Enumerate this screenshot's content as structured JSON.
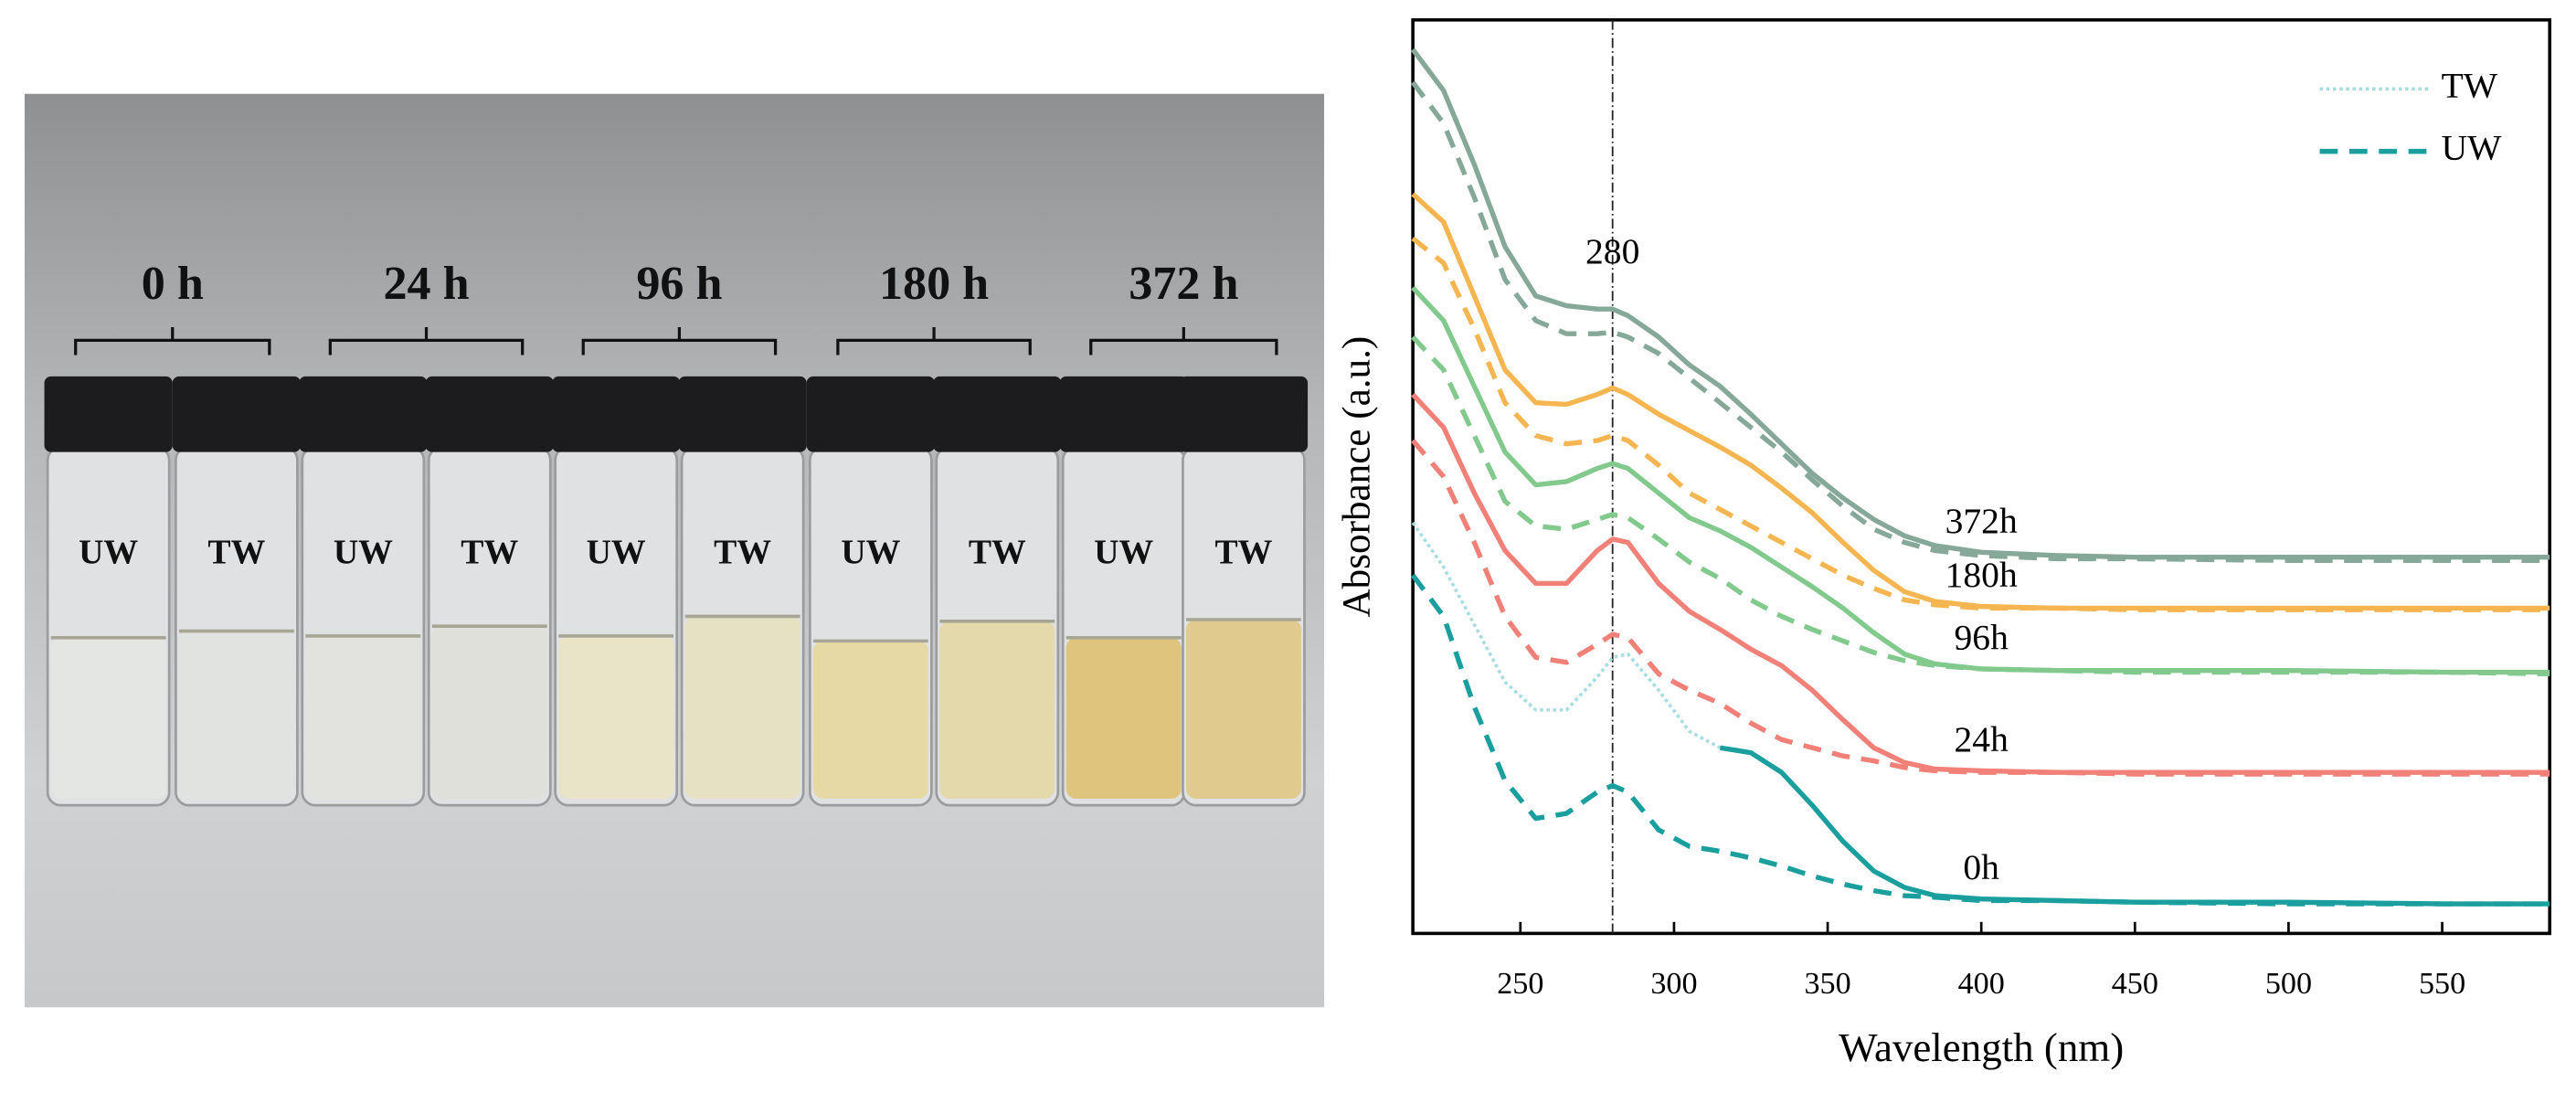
{
  "photo": {
    "groups": [
      "0 h",
      "24 h",
      "96 h",
      "180 h",
      "372 h"
    ],
    "vials": [
      "UW",
      "TW",
      "UW",
      "TW",
      "UW",
      "TW",
      "UW",
      "TW",
      "UW",
      "TW"
    ]
  },
  "chart_data": {
    "type": "line",
    "xlabel": "Wavelength (nm)",
    "ylabel": "Absorbance (a.u.)",
    "x": [
      215,
      225,
      235,
      245,
      255,
      265,
      275,
      280,
      285,
      295,
      305,
      315,
      325,
      335,
      345,
      355,
      365,
      375,
      385,
      400,
      425,
      450,
      500,
      550,
      585
    ],
    "xlim": [
      215,
      585
    ],
    "xticks": [
      250,
      300,
      350,
      400,
      450,
      500,
      550
    ],
    "ylim": [
      0,
      556
    ],
    "vline": 280,
    "legend_loc": "upper right",
    "legend": [
      {
        "name": "TW",
        "color": "#a8dde0",
        "style": "dotted"
      },
      {
        "name": "UW",
        "color": "#1a9e9e",
        "style": "dashed"
      }
    ],
    "series": [
      {
        "color": "#1a9e9e",
        "style": "dashed",
        "values": [
          218,
          193,
          138,
          93,
          70,
          73,
          86,
          90,
          86,
          63,
          53,
          50,
          46,
          41,
          35,
          30,
          26,
          23,
          22,
          20,
          20,
          19,
          18,
          18,
          18
        ]
      },
      {
        "color": "#a8dde0",
        "style": "dotted",
        "values": [
          250,
          223,
          188,
          153,
          136,
          136,
          156,
          168,
          170,
          148,
          123,
          113,
          null,
          null,
          null,
          null,
          null,
          null,
          null,
          null,
          null,
          null,
          null,
          null,
          null
        ]
      },
      {
        "name": "0h",
        "color": "#1a9e9e",
        "style": "solid",
        "values": [
          null,
          null,
          null,
          null,
          null,
          null,
          null,
          null,
          null,
          null,
          null,
          113,
          110,
          98,
          78,
          56,
          38,
          28,
          23,
          21,
          20,
          19,
          19,
          18,
          18
        ]
      },
      {
        "color": "#f08078",
        "style": "dashed",
        "values": [
          300,
          278,
          238,
          193,
          168,
          165,
          176,
          182,
          180,
          158,
          148,
          140,
          128,
          118,
          113,
          108,
          105,
          101,
          99,
          98,
          98,
          97,
          97,
          97,
          97
        ]
      },
      {
        "name": "24h",
        "color": "#f08078",
        "style": "solid",
        "values": [
          328,
          308,
          268,
          233,
          213,
          213,
          233,
          240,
          238,
          213,
          196,
          185,
          173,
          163,
          148,
          130,
          113,
          104,
          100,
          99,
          98,
          98,
          98,
          98,
          98
        ]
      },
      {
        "color": "#82c98e",
        "style": "dashed",
        "values": [
          363,
          343,
          303,
          263,
          248,
          246,
          252,
          255,
          253,
          240,
          226,
          216,
          203,
          193,
          185,
          178,
          171,
          166,
          163,
          161,
          160,
          159,
          159,
          159,
          158
        ]
      },
      {
        "name": "96h",
        "color": "#82c98e",
        "style": "solid",
        "values": [
          393,
          373,
          333,
          293,
          273,
          275,
          283,
          286,
          283,
          268,
          253,
          245,
          235,
          223,
          211,
          198,
          183,
          170,
          164,
          161,
          160,
          160,
          160,
          159,
          159
        ]
      },
      {
        "color": "#f5b551",
        "style": "dashed",
        "values": [
          423,
          408,
          368,
          323,
          303,
          298,
          300,
          303,
          300,
          285,
          268,
          258,
          248,
          238,
          228,
          218,
          210,
          203,
          200,
          198,
          198,
          197,
          197,
          197,
          197
        ]
      },
      {
        "name": "180h",
        "color": "#f5b551",
        "style": "solid",
        "values": [
          450,
          433,
          388,
          343,
          323,
          322,
          328,
          332,
          328,
          316,
          306,
          296,
          285,
          271,
          256,
          238,
          221,
          208,
          202,
          199,
          198,
          198,
          198,
          198,
          198
        ]
      },
      {
        "color": "#86a899",
        "style": "dashed",
        "values": [
          518,
          493,
          448,
          398,
          373,
          365,
          365,
          366,
          363,
          353,
          338,
          323,
          308,
          293,
          276,
          260,
          246,
          238,
          233,
          230,
          228,
          228,
          227,
          227,
          227
        ]
      },
      {
        "name": "372h",
        "color": "#86a899",
        "style": "solid",
        "values": [
          538,
          513,
          468,
          418,
          388,
          382,
          380,
          380,
          376,
          363,
          346,
          333,
          316,
          298,
          280,
          265,
          252,
          242,
          236,
          232,
          230,
          229,
          229,
          229,
          229
        ]
      }
    ]
  }
}
